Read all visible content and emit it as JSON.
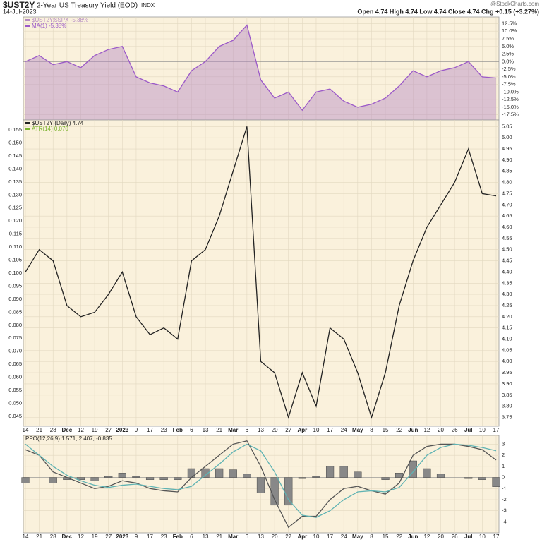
{
  "header": {
    "symbol": "$UST2Y",
    "name": "2-Year US Treasury Yield (EOD)",
    "exchange": "INDX",
    "date": "14-Jul-2023",
    "source": "@StockCharts.com",
    "quote": "Open 4.74 High 4.74 Low 4.74 Close 4.74 Chg +0.15 (+3.27%)"
  },
  "chart_data": [
    {
      "type": "area",
      "categories": [
        "14",
        "21",
        "28",
        "Dec",
        "12",
        "19",
        "27",
        "2023",
        "9",
        "17",
        "23",
        "Feb",
        "6",
        "13",
        "21",
        "Mar",
        "6",
        "13",
        "20",
        "27",
        "Apr",
        "10",
        "17",
        "24",
        "May",
        "8",
        "15",
        "22",
        "Jun",
        "12",
        "20",
        "26",
        "Jul",
        "10",
        "17"
      ],
      "series": [
        {
          "name": "$UST2Y:$SPX -5.38%",
          "color": "#b58ac4",
          "values": [
            0,
            2,
            -1,
            0,
            -2,
            2,
            4,
            5,
            -5,
            -7,
            -8,
            -10,
            -3,
            0,
            5,
            7,
            12,
            -6,
            -12,
            -10,
            -16,
            -10,
            -9,
            -13,
            -15,
            -14,
            -12,
            -8,
            -3,
            -5,
            -3,
            -2,
            0,
            -5,
            -5.38
          ]
        },
        {
          "name": "MA(1) -5.38%",
          "color": "#9b59c8",
          "values": [
            0,
            2,
            -1,
            0,
            -2,
            2,
            4,
            5,
            -5,
            -7,
            -8,
            -10,
            -3,
            0,
            5,
            7,
            12,
            -6,
            -12,
            -10,
            -16,
            -10,
            -9,
            -13,
            -15,
            -14,
            -12,
            -8,
            -3,
            -5,
            -3,
            -2,
            0,
            -5,
            -5.38
          ]
        }
      ],
      "y2lim": [
        -18.5,
        14
      ],
      "y2ticks": [
        {
          "value": 12.5,
          "label": "12.5%"
        },
        {
          "value": 10,
          "label": "10.0%"
        },
        {
          "value": 7.5,
          "label": "7.5%"
        },
        {
          "value": 5,
          "label": "5.0%"
        },
        {
          "value": 2.5,
          "label": "2.5%"
        },
        {
          "value": 0,
          "label": "0.0%"
        },
        {
          "value": -2.5,
          "label": "-2.5%"
        },
        {
          "value": -5,
          "label": "-5.0%"
        },
        {
          "value": -7.5,
          "label": "-7.5%"
        },
        {
          "value": -10,
          "label": "-10.0%"
        },
        {
          "value": -12.5,
          "label": "-12.5%"
        },
        {
          "value": -15,
          "label": "-15.0%"
        },
        {
          "value": -17.5,
          "label": "-17.5%"
        }
      ],
      "grid": true
    },
    {
      "type": "line",
      "categories": [
        "14",
        "21",
        "28",
        "Dec",
        "12",
        "19",
        "27",
        "2023",
        "9",
        "17",
        "23",
        "Feb",
        "6",
        "13",
        "21",
        "Mar",
        "6",
        "13",
        "20",
        "27",
        "Apr",
        "10",
        "17",
        "24",
        "May",
        "8",
        "15",
        "22",
        "Jun",
        "12",
        "20",
        "26",
        "Jul",
        "10",
        "17"
      ],
      "series": [
        {
          "name": "$UST2Y (Daily) 4.74",
          "color": "#222222",
          "axis": "y2",
          "values": [
            4.4,
            4.5,
            4.45,
            4.25,
            4.2,
            4.22,
            4.3,
            4.4,
            4.2,
            4.12,
            4.15,
            4.1,
            4.45,
            4.5,
            4.65,
            4.85,
            5.05,
            4.0,
            3.95,
            3.75,
            3.95,
            3.8,
            4.15,
            4.1,
            3.95,
            3.75,
            3.95,
            4.25,
            4.45,
            4.6,
            4.7,
            4.8,
            4.95,
            4.75,
            4.74
          ]
        }
      ],
      "annotations": [
        {
          "text": "ATR(14) 0.070",
          "color": "#7bb32e"
        }
      ],
      "ylim": [
        0.042,
        0.158
      ],
      "yticks": [
        0.155,
        {
          "value": 0.15,
          "label": "0.150"
        },
        0.145,
        {
          "value": 0.14,
          "label": "0.140"
        },
        0.135,
        {
          "value": 0.13,
          "label": "0.130"
        },
        0.125,
        {
          "value": 0.12,
          "label": "0.120"
        },
        0.115,
        {
          "value": 0.11,
          "label": "0.110"
        },
        0.105,
        {
          "value": 0.1,
          "label": "0.100"
        },
        0.095,
        {
          "value": 0.09,
          "label": "0.090"
        },
        0.085,
        {
          "value": 0.08,
          "label": "0.080"
        },
        0.075,
        {
          "value": 0.07,
          "label": "0.070"
        },
        0.065,
        {
          "value": 0.06,
          "label": "0.060"
        },
        0.055,
        {
          "value": 0.05,
          "label": "0.050"
        },
        0.045
      ],
      "y2lim": [
        3.72,
        5.07
      ],
      "y2ticks": [
        5.05,
        {
          "value": 5,
          "label": "5.00"
        },
        4.95,
        {
          "value": 4.9,
          "label": "4.90"
        },
        4.85,
        {
          "value": 4.8,
          "label": "4.80"
        },
        4.75,
        {
          "value": 4.7,
          "label": "4.70"
        },
        4.65,
        {
          "value": 4.6,
          "label": "4.60"
        },
        4.55,
        {
          "value": 4.5,
          "label": "4.50"
        },
        4.45,
        {
          "value": 4.4,
          "label": "4.40"
        },
        4.35,
        {
          "value": 4.3,
          "label": "4.30"
        },
        4.25,
        {
          "value": 4.2,
          "label": "4.20"
        },
        4.15,
        {
          "value": 4.1,
          "label": "4.10"
        },
        4.05,
        {
          "value": 4,
          "label": "4.00"
        },
        3.95,
        {
          "value": 3.9,
          "label": "3.90"
        },
        3.85,
        {
          "value": 3.8,
          "label": "3.80"
        },
        3.75
      ],
      "grid": true
    },
    {
      "type": "line",
      "title": "PPO(12,26,9) 1.571, 2.407, -0.835",
      "categories": [
        "14",
        "21",
        "28",
        "Dec",
        "12",
        "19",
        "27",
        "2023",
        "9",
        "17",
        "23",
        "Feb",
        "6",
        "13",
        "21",
        "Mar",
        "6",
        "13",
        "20",
        "27",
        "Apr",
        "10",
        "17",
        "24",
        "May",
        "8",
        "15",
        "22",
        "Jun",
        "12",
        "20",
        "26",
        "Jul",
        "10",
        "17"
      ],
      "series": [
        {
          "name": "PPO",
          "color": "#555555",
          "values": [
            2.5,
            2,
            0.5,
            0,
            -0.5,
            -1,
            -0.8,
            -0.3,
            -0.5,
            -1,
            -1.2,
            -1.3,
            0,
            1,
            2,
            3,
            3.3,
            1,
            -2,
            -4.5,
            -3.5,
            -3.5,
            -2,
            -1,
            -0.8,
            -1.2,
            -1.5,
            -0.5,
            2,
            2.8,
            3,
            3,
            2.8,
            2.5,
            1.571
          ]
        },
        {
          "name": "Signal",
          "color": "#5fb3b3",
          "values": [
            3,
            2,
            1,
            0.2,
            -0.3,
            -0.7,
            -0.9,
            -0.7,
            -0.6,
            -0.8,
            -1,
            -1.1,
            -0.8,
            0.2,
            1.2,
            2.3,
            3,
            2.4,
            0.5,
            -2,
            -3.4,
            -3.6,
            -3,
            -2,
            -1.3,
            -1.2,
            -1.3,
            -0.9,
            0.5,
            2,
            2.7,
            3,
            2.9,
            2.7,
            2.407
          ]
        },
        {
          "name": "Histogram",
          "type": "bar",
          "color": "#888888",
          "values": [
            -0.5,
            0,
            -0.5,
            -0.2,
            -0.2,
            -0.3,
            0.1,
            0.4,
            0.1,
            -0.2,
            -0.2,
            -0.2,
            0.8,
            0.8,
            0.8,
            0.7,
            0.3,
            -1.4,
            -2.5,
            -2.5,
            -0.1,
            0.1,
            1,
            1,
            0.5,
            0,
            -0.2,
            0.4,
            1.5,
            0.8,
            0.3,
            0,
            -0.1,
            -0.2,
            -0.835
          ]
        }
      ],
      "y2lim": [
        -4.8,
        3.6
      ],
      "y2ticks": [
        3,
        2,
        1,
        0,
        -1,
        -2,
        -3,
        -4
      ],
      "grid": true
    }
  ]
}
